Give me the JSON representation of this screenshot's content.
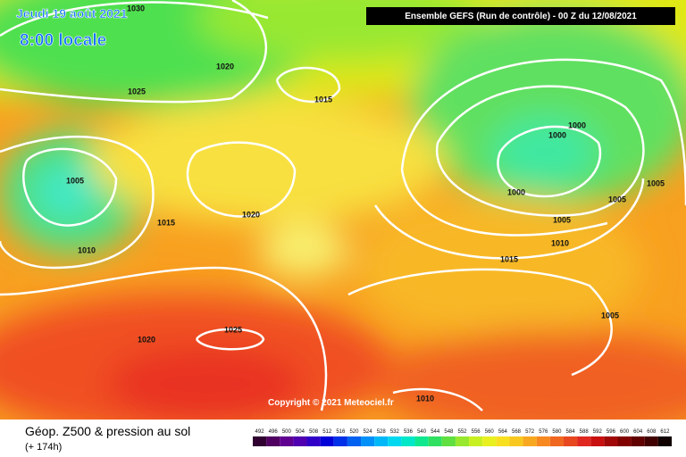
{
  "header": {
    "date": "Jeudi 19 août 2021",
    "time": "8:00 locale",
    "run": "Ensemble GEFS  (Run de contrôle)  -  00 Z du 12/08/2021"
  },
  "copyright": "Copyright © 2021 Meteociel.fr",
  "footer": {
    "title": "Géop. Z500 & pression au sol",
    "lead": "(+ 174h)"
  },
  "isobar_labels": [
    "1030",
    "1020",
    "1025",
    "1015",
    "1005",
    "1015",
    "1020",
    "1010",
    "1000",
    "1000",
    "1000",
    "1005",
    "1005",
    "1005",
    "1010",
    "1015",
    "1005",
    "1025",
    "1020",
    "1010"
  ],
  "legend": {
    "labels": [
      492,
      496,
      500,
      504,
      508,
      512,
      516,
      520,
      524,
      528,
      532,
      536,
      540,
      544,
      548,
      552,
      556,
      560,
      564,
      568,
      572,
      576,
      580,
      584,
      588,
      592,
      596,
      600,
      604,
      608,
      612
    ]
  }
}
